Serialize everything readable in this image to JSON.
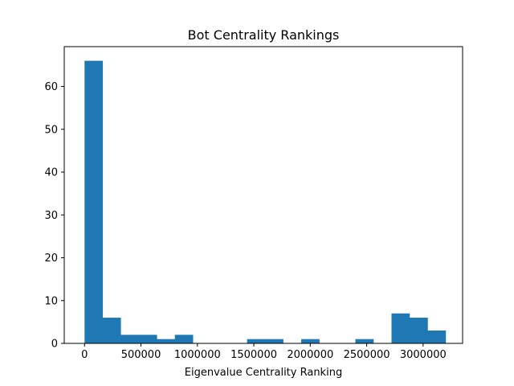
{
  "chart_data": {
    "type": "bar",
    "title": "Bot Centrality Rankings",
    "xlabel": "Eigenvalue Centrality Ranking",
    "ylabel": "",
    "xlim": [
      -180000,
      3350000
    ],
    "ylim": [
      0,
      69.3
    ],
    "grid": false,
    "bar_color": "#1f77b4",
    "bins": [
      {
        "x0": 0,
        "x1": 160000,
        "count": 66
      },
      {
        "x0": 160000,
        "x1": 320000,
        "count": 6
      },
      {
        "x0": 320000,
        "x1": 480000,
        "count": 2
      },
      {
        "x0": 480000,
        "x1": 640000,
        "count": 2
      },
      {
        "x0": 640000,
        "x1": 800000,
        "count": 1
      },
      {
        "x0": 800000,
        "x1": 960000,
        "count": 2
      },
      {
        "x0": 960000,
        "x1": 1120000,
        "count": 0
      },
      {
        "x0": 1120000,
        "x1": 1280000,
        "count": 0
      },
      {
        "x0": 1280000,
        "x1": 1440000,
        "count": 0
      },
      {
        "x0": 1440000,
        "x1": 1600000,
        "count": 1
      },
      {
        "x0": 1600000,
        "x1": 1760000,
        "count": 1
      },
      {
        "x0": 1760000,
        "x1": 1920000,
        "count": 0
      },
      {
        "x0": 1920000,
        "x1": 2080000,
        "count": 1
      },
      {
        "x0": 2080000,
        "x1": 2240000,
        "count": 0
      },
      {
        "x0": 2240000,
        "x1": 2400000,
        "count": 0
      },
      {
        "x0": 2400000,
        "x1": 2560000,
        "count": 1
      },
      {
        "x0": 2560000,
        "x1": 2720000,
        "count": 0
      },
      {
        "x0": 2720000,
        "x1": 2880000,
        "count": 7
      },
      {
        "x0": 2880000,
        "x1": 3040000,
        "count": 6
      },
      {
        "x0": 3040000,
        "x1": 3200000,
        "count": 3
      }
    ],
    "xticks": [
      0,
      500000,
      1000000,
      1500000,
      2000000,
      2500000,
      3000000
    ],
    "xtick_labels": [
      "0",
      "500000",
      "1000000",
      "1500000",
      "2000000",
      "2500000",
      "3000000"
    ],
    "yticks": [
      0,
      10,
      20,
      30,
      40,
      50,
      60
    ],
    "ytick_labels": [
      "0",
      "10",
      "20",
      "30",
      "40",
      "50",
      "60"
    ]
  }
}
